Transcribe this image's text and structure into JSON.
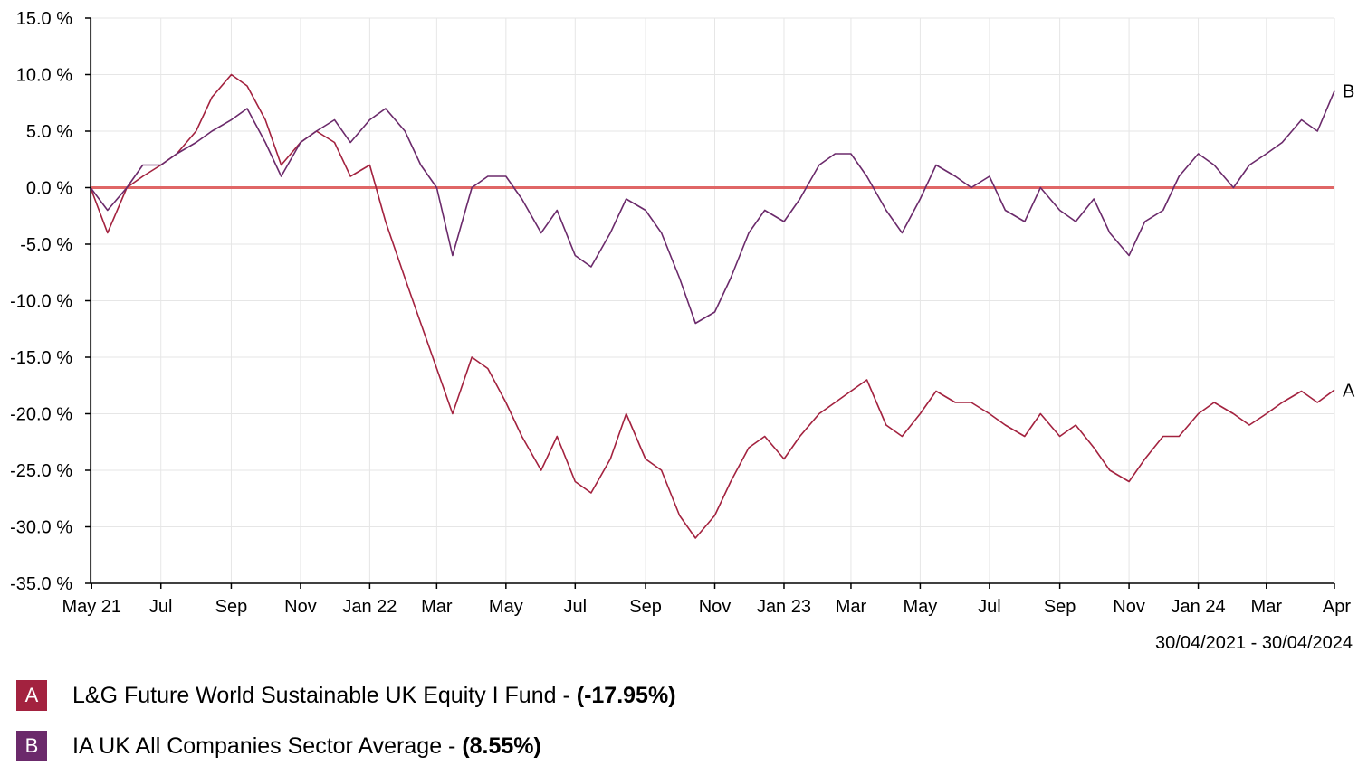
{
  "colors": {
    "A": "#a3223f",
    "B": "#6b2a6b",
    "zero": "#e06666",
    "axis": "#000000",
    "grid": "#e6e6e6"
  },
  "date_range": "30/04/2021 - 30/04/2024",
  "legend": [
    {
      "key": "A",
      "label": "L&G Future World Sustainable UK Equity I Fund - ",
      "value": "(-17.95%)",
      "color": "#a3223f"
    },
    {
      "key": "B",
      "label": "IA UK All Companies Sector Average - ",
      "value": "(8.55%)",
      "color": "#6b2a6b"
    }
  ],
  "chart_data": {
    "type": "line",
    "title": "",
    "xlabel": "",
    "ylabel": "",
    "ylim": [
      -35,
      15
    ],
    "y_ticks": [
      15,
      10,
      5,
      0,
      -5,
      -10,
      -15,
      -20,
      -25,
      -30,
      -35
    ],
    "y_tick_labels": [
      "15.0 %",
      "10.0 %",
      "5.0 %",
      "0.0 %",
      "-5.0 %",
      "-10.0 %",
      "-15.0 %",
      "-20.0 %",
      "-25.0 %",
      "-30.0 %",
      "-35.0 %"
    ],
    "x_range": [
      "2021-04-30",
      "2024-04-30"
    ],
    "x_ticks": [
      "2021-05-01",
      "2021-07-01",
      "2021-09-01",
      "2021-11-01",
      "2022-01-01",
      "2022-03-01",
      "2022-05-01",
      "2022-07-01",
      "2022-09-01",
      "2022-11-01",
      "2023-01-01",
      "2023-03-01",
      "2023-05-01",
      "2023-07-01",
      "2023-09-01",
      "2023-11-01",
      "2024-01-01",
      "2024-03-01",
      "2024-04-30"
    ],
    "x_tick_labels": [
      "May 21",
      "Jul",
      "Sep",
      "Nov",
      "Jan 22",
      "Mar",
      "May",
      "Jul",
      "Sep",
      "Nov",
      "Jan 23",
      "Mar",
      "May",
      "Jul",
      "Sep",
      "Nov",
      "Jan 24",
      "Mar",
      "Apr"
    ],
    "grid": true,
    "series": [
      {
        "name": "A",
        "end_label": "A",
        "color": "#a3223f",
        "x": [
          "2021-04-30",
          "2021-05-15",
          "2021-06-01",
          "2021-06-15",
          "2021-07-01",
          "2021-07-15",
          "2021-08-01",
          "2021-08-15",
          "2021-09-01",
          "2021-09-15",
          "2021-10-01",
          "2021-10-15",
          "2021-11-01",
          "2021-11-15",
          "2021-12-01",
          "2021-12-15",
          "2022-01-01",
          "2022-01-15",
          "2022-02-01",
          "2022-02-15",
          "2022-03-01",
          "2022-03-15",
          "2022-04-01",
          "2022-04-15",
          "2022-05-01",
          "2022-05-15",
          "2022-06-01",
          "2022-06-15",
          "2022-07-01",
          "2022-07-15",
          "2022-08-01",
          "2022-08-15",
          "2022-09-01",
          "2022-09-15",
          "2022-10-01",
          "2022-10-15",
          "2022-11-01",
          "2022-11-15",
          "2022-12-01",
          "2022-12-15",
          "2023-01-01",
          "2023-01-15",
          "2023-02-01",
          "2023-02-15",
          "2023-03-01",
          "2023-03-15",
          "2023-04-01",
          "2023-04-15",
          "2023-05-01",
          "2023-05-15",
          "2023-06-01",
          "2023-06-15",
          "2023-07-01",
          "2023-07-15",
          "2023-08-01",
          "2023-08-15",
          "2023-09-01",
          "2023-09-15",
          "2023-10-01",
          "2023-10-15",
          "2023-11-01",
          "2023-11-15",
          "2023-12-01",
          "2023-12-15",
          "2024-01-01",
          "2024-01-15",
          "2024-02-01",
          "2024-02-15",
          "2024-03-01",
          "2024-03-15",
          "2024-04-01",
          "2024-04-15",
          "2024-04-30"
        ],
        "y": [
          0,
          -4,
          0,
          1,
          2,
          3,
          5,
          8,
          10,
          9,
          6,
          2,
          4,
          5,
          4,
          1,
          2,
          -3,
          -8,
          -12,
          -16,
          -20,
          -15,
          -16,
          -19,
          -22,
          -25,
          -22,
          -26,
          -27,
          -24,
          -20,
          -24,
          -25,
          -29,
          -31,
          -29,
          -26,
          -23,
          -22,
          -24,
          -22,
          -20,
          -19,
          -18,
          -17,
          -21,
          -22,
          -20,
          -18,
          -19,
          -19,
          -20,
          -21,
          -22,
          -20,
          -22,
          -21,
          -23,
          -25,
          -26,
          -24,
          -22,
          -22,
          -20,
          -19,
          -20,
          -21,
          -20,
          -19,
          -18,
          -19,
          -17.9
        ]
      },
      {
        "name": "B",
        "end_label": "B",
        "color": "#6b2a6b",
        "x": [
          "2021-04-30",
          "2021-05-15",
          "2021-06-01",
          "2021-06-15",
          "2021-07-01",
          "2021-07-15",
          "2021-08-01",
          "2021-08-15",
          "2021-09-01",
          "2021-09-15",
          "2021-10-01",
          "2021-10-15",
          "2021-11-01",
          "2021-11-15",
          "2021-12-01",
          "2021-12-15",
          "2022-01-01",
          "2022-01-15",
          "2022-02-01",
          "2022-02-15",
          "2022-03-01",
          "2022-03-15",
          "2022-04-01",
          "2022-04-15",
          "2022-05-01",
          "2022-05-15",
          "2022-06-01",
          "2022-06-15",
          "2022-07-01",
          "2022-07-15",
          "2022-08-01",
          "2022-08-15",
          "2022-09-01",
          "2022-09-15",
          "2022-10-01",
          "2022-10-15",
          "2022-11-01",
          "2022-11-15",
          "2022-12-01",
          "2022-12-15",
          "2023-01-01",
          "2023-01-15",
          "2023-02-01",
          "2023-02-15",
          "2023-03-01",
          "2023-03-15",
          "2023-04-01",
          "2023-04-15",
          "2023-05-01",
          "2023-05-15",
          "2023-06-01",
          "2023-06-15",
          "2023-07-01",
          "2023-07-15",
          "2023-08-01",
          "2023-08-15",
          "2023-09-01",
          "2023-09-15",
          "2023-10-01",
          "2023-10-15",
          "2023-11-01",
          "2023-11-15",
          "2023-12-01",
          "2023-12-15",
          "2024-01-01",
          "2024-01-15",
          "2024-02-01",
          "2024-02-15",
          "2024-03-01",
          "2024-03-15",
          "2024-04-01",
          "2024-04-15",
          "2024-04-30"
        ],
        "y": [
          0,
          -2,
          0,
          2,
          2,
          3,
          4,
          5,
          6,
          7,
          4,
          1,
          4,
          5,
          6,
          4,
          6,
          7,
          5,
          2,
          0,
          -6,
          0,
          1,
          1,
          -1,
          -4,
          -2,
          -6,
          -7,
          -4,
          -1,
          -2,
          -4,
          -8,
          -12,
          -11,
          -8,
          -4,
          -2,
          -3,
          -1,
          2,
          3,
          3,
          1,
          -2,
          -4,
          -1,
          2,
          1,
          0,
          1,
          -2,
          -3,
          0,
          -2,
          -3,
          -1,
          -4,
          -6,
          -3,
          -2,
          1,
          3,
          2,
          0,
          2,
          3,
          4,
          6,
          5,
          8.55
        ]
      }
    ]
  }
}
